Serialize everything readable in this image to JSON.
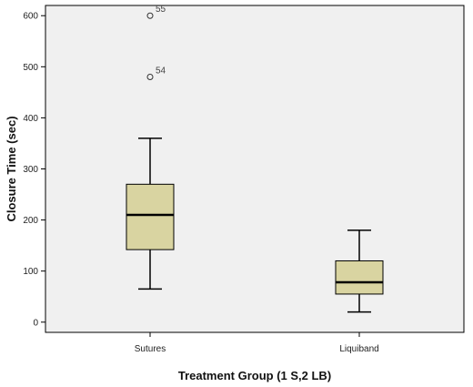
{
  "chart_data": {
    "type": "box",
    "xlabel": "Treatment Group (1 S,2 LB)",
    "ylabel": "Closure Time (sec)",
    "ylim": [
      -20,
      620
    ],
    "yticks": [
      0,
      100,
      200,
      300,
      400,
      500,
      600
    ],
    "categories": [
      "Sutures",
      "Liquiband"
    ],
    "boxes": [
      {
        "category": "Sutures",
        "min": 65,
        "q1": 142,
        "median": 210,
        "q3": 270,
        "max": 360,
        "outliers": [
          {
            "label": "54",
            "value": 480
          },
          {
            "label": "55",
            "value": 600
          }
        ]
      },
      {
        "category": "Liquiband",
        "min": 20,
        "q1": 55,
        "median": 78,
        "q3": 120,
        "max": 180,
        "outliers": []
      }
    ],
    "box_color": "#d9d4a1",
    "grid": false,
    "legend": "none"
  }
}
